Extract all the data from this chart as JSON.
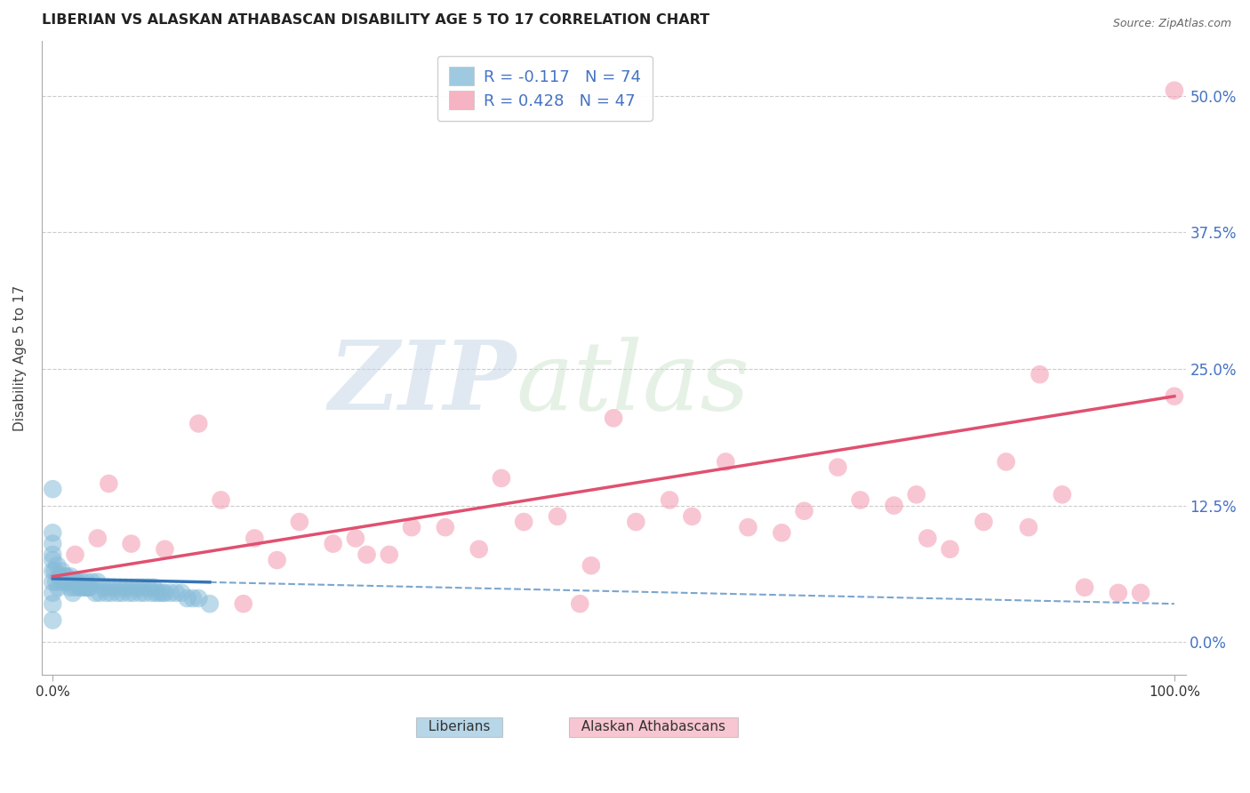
{
  "title": "LIBERIAN VS ALASKAN ATHABASCAN DISABILITY AGE 5 TO 17 CORRELATION CHART",
  "source": "Source: ZipAtlas.com",
  "ylabel": "Disability Age 5 to 17",
  "ytick_values": [
    0.0,
    12.5,
    25.0,
    37.5,
    50.0
  ],
  "xlim": [
    -1,
    101
  ],
  "ylim": [
    -3,
    55
  ],
  "watermark_zip": "ZIP",
  "watermark_atlas": "atlas",
  "legend_line1": "R = -0.117   N = 74",
  "legend_line2": "R = 0.428   N = 47",
  "liberian_color": "#87bcd9",
  "athabascan_color": "#f4a0b5",
  "liberian_line_color": "#3575b5",
  "athabascan_line_color": "#e05070",
  "liberian_scatter_x": [
    0.0,
    0.0,
    0.0,
    0.0,
    0.0,
    0.0,
    0.0,
    0.0,
    0.0,
    0.0,
    0.3,
    0.5,
    0.7,
    0.8,
    1.0,
    1.2,
    1.3,
    1.5,
    1.7,
    1.8,
    2.0,
    2.2,
    2.5,
    2.8,
    3.0,
    3.2,
    3.5,
    3.8,
    4.0,
    4.2,
    4.5,
    4.8,
    5.0,
    5.2,
    5.5,
    5.8,
    6.0,
    6.2,
    6.5,
    6.8,
    7.0,
    7.2,
    7.5,
    7.8,
    8.0,
    8.2,
    8.5,
    8.8,
    9.0,
    9.2,
    9.5,
    9.8,
    10.0,
    10.5,
    11.0,
    11.5,
    12.0,
    12.5,
    13.0,
    0.2,
    0.4,
    0.6,
    0.9,
    1.1,
    1.4,
    1.6,
    1.9,
    2.1,
    2.3,
    2.6,
    2.9,
    3.1,
    3.3,
    14.0
  ],
  "liberian_scatter_y": [
    2.0,
    3.5,
    4.5,
    5.5,
    6.5,
    7.5,
    8.0,
    9.0,
    10.0,
    14.0,
    5.5,
    5.0,
    6.0,
    6.5,
    5.5,
    6.0,
    5.5,
    5.0,
    5.5,
    4.5,
    5.5,
    5.5,
    5.0,
    5.0,
    5.5,
    5.0,
    5.5,
    4.5,
    5.5,
    4.5,
    5.0,
    4.5,
    5.0,
    4.5,
    5.0,
    4.5,
    5.0,
    4.5,
    5.0,
    4.5,
    5.0,
    4.5,
    5.0,
    4.5,
    5.0,
    4.5,
    5.0,
    4.5,
    5.0,
    4.5,
    4.5,
    4.5,
    4.5,
    4.5,
    4.5,
    4.5,
    4.0,
    4.0,
    4.0,
    6.5,
    7.0,
    6.0,
    5.5,
    6.0,
    5.5,
    6.0,
    5.0,
    5.5,
    5.0,
    5.5,
    5.0,
    5.0,
    5.0,
    3.5
  ],
  "athabascan_scatter_x": [
    2.0,
    4.0,
    7.0,
    10.0,
    13.0,
    15.0,
    18.0,
    20.0,
    22.0,
    25.0,
    27.0,
    30.0,
    32.0,
    35.0,
    38.0,
    40.0,
    42.0,
    45.0,
    48.0,
    50.0,
    52.0,
    55.0,
    57.0,
    60.0,
    62.0,
    65.0,
    67.0,
    70.0,
    72.0,
    75.0,
    77.0,
    80.0,
    83.0,
    85.0,
    87.0,
    90.0,
    92.0,
    95.0,
    97.0,
    100.0,
    100.0,
    5.0,
    17.0,
    28.0,
    47.0,
    78.0,
    88.0
  ],
  "athabascan_scatter_y": [
    8.0,
    9.5,
    9.0,
    8.5,
    20.0,
    13.0,
    9.5,
    7.5,
    11.0,
    9.0,
    9.5,
    8.0,
    10.5,
    10.5,
    8.5,
    15.0,
    11.0,
    11.5,
    7.0,
    20.5,
    11.0,
    13.0,
    11.5,
    16.5,
    10.5,
    10.0,
    12.0,
    16.0,
    13.0,
    12.5,
    13.5,
    8.5,
    11.0,
    16.5,
    10.5,
    13.5,
    5.0,
    4.5,
    4.5,
    50.5,
    22.5,
    14.5,
    3.5,
    8.0,
    3.5,
    9.5,
    24.5
  ],
  "liberian_reg_x0": 0,
  "liberian_reg_x1": 100,
  "liberian_reg_y0": 5.8,
  "liberian_reg_y1": 3.5,
  "liberian_solid_end": 14,
  "athabascan_reg_x0": 0,
  "athabascan_reg_x1": 100,
  "athabascan_reg_y0": 6.0,
  "athabascan_reg_y1": 22.5
}
